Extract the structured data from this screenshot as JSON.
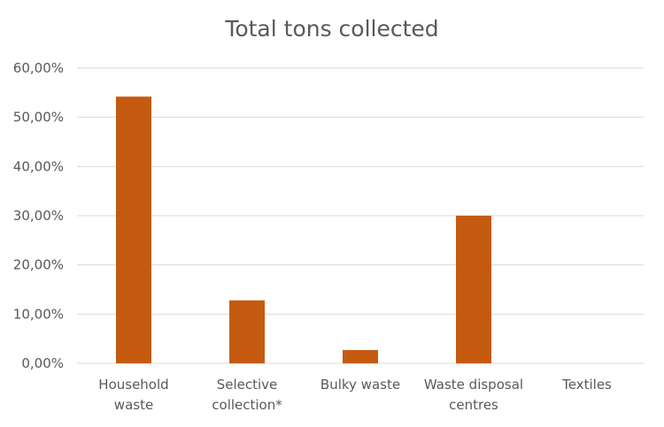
{
  "chart_data": {
    "type": "bar",
    "title": "Total tons collected",
    "categories": [
      [
        "Household",
        "waste"
      ],
      [
        "Selective",
        "collection*"
      ],
      [
        "Bulky waste"
      ],
      [
        "Waste disposal",
        "centres"
      ],
      [
        "Textiles"
      ]
    ],
    "values": [
      54.2,
      12.8,
      2.7,
      30.0,
      0.0
    ],
    "ylim": [
      0,
      60
    ],
    "yticks": [
      0,
      10,
      20,
      30,
      40,
      50,
      60
    ],
    "ytick_labels": [
      "0,00%",
      "10,00%",
      "20,00%",
      "30,00%",
      "40,00%",
      "50,00%",
      "60,00%"
    ],
    "bar_color": "#c55a11",
    "grid": true,
    "xlabel": "",
    "ylabel": ""
  }
}
